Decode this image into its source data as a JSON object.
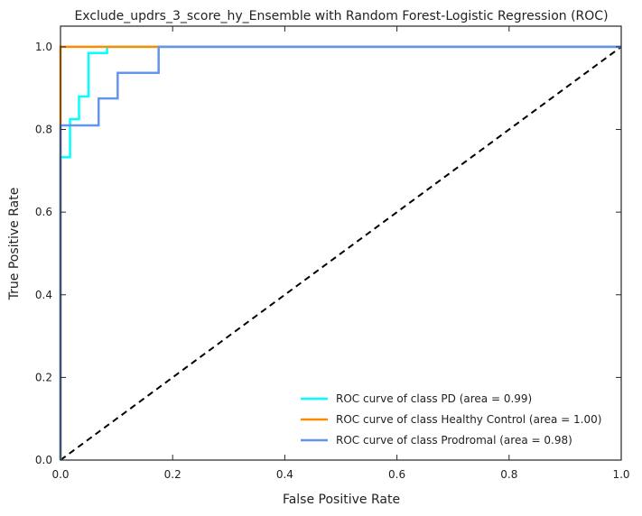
{
  "chart_data": {
    "type": "line",
    "title": "Exclude_updrs_3_score_hy_Ensemble with Random Forest-Logistic Regression (ROC)",
    "xlabel": "False Positive Rate",
    "ylabel": "True Positive Rate",
    "xlim": [
      0.0,
      1.0
    ],
    "ylim": [
      0.0,
      1.05
    ],
    "xticks": [
      "0.0",
      "0.2",
      "0.4",
      "0.6",
      "0.8",
      "1.0"
    ],
    "yticks": [
      "0.0",
      "0.2",
      "0.4",
      "0.6",
      "0.8",
      "1.0"
    ],
    "grid": false,
    "legend_position": "lower-right",
    "series": [
      {
        "name": "ROC curve of class PD (area = 0.99)",
        "color": "#00ffff",
        "x": [
          0.0,
          0.0,
          0.0,
          0.017,
          0.017,
          0.033,
          0.033,
          0.05,
          0.05,
          0.083,
          0.083,
          1.0
        ],
        "y": [
          0.0,
          0.733,
          0.733,
          0.733,
          0.825,
          0.825,
          0.88,
          0.88,
          0.985,
          0.985,
          1.0,
          1.0
        ]
      },
      {
        "name": "ROC curve of class Healthy Control (area = 1.00)",
        "color": "#ff8c00",
        "x": [
          0.0,
          0.0,
          1.0
        ],
        "y": [
          0.0,
          1.0,
          1.0
        ]
      },
      {
        "name": "ROC curve of class Prodromal (area = 0.98)",
        "color": "#6495ed",
        "x": [
          0.0,
          0.0,
          0.068,
          0.068,
          0.102,
          0.102,
          0.175,
          0.175,
          1.0
        ],
        "y": [
          0.0,
          0.81,
          0.81,
          0.875,
          0.875,
          0.937,
          0.937,
          1.0,
          1.0
        ]
      }
    ],
    "reference_line": {
      "x": [
        0.0,
        1.0
      ],
      "y": [
        0.0,
        1.0
      ],
      "color": "#000000",
      "style": "dashed"
    }
  }
}
